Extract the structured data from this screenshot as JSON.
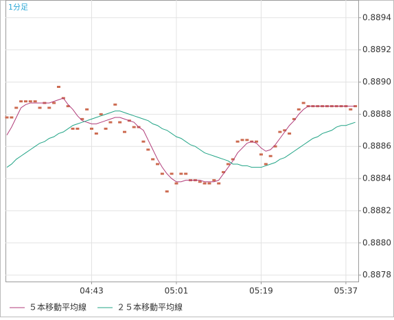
{
  "chart_data": {
    "type": "line",
    "title": "1分足",
    "categories": [
      null,
      null,
      null,
      null,
      null,
      null,
      null,
      null,
      null,
      null,
      null,
      null,
      null,
      null,
      null,
      null,
      null,
      null,
      "04:43",
      null,
      null,
      null,
      null,
      null,
      null,
      null,
      null,
      null,
      null,
      null,
      null,
      null,
      null,
      null,
      null,
      null,
      "05:01",
      null,
      null,
      null,
      null,
      null,
      null,
      null,
      null,
      null,
      null,
      null,
      null,
      null,
      null,
      null,
      null,
      null,
      "05:19",
      null,
      null,
      null,
      null,
      null,
      null,
      null,
      null,
      null,
      null,
      null,
      null,
      null,
      null,
      null,
      null,
      null,
      "05:37",
      null,
      null
    ],
    "series": [
      {
        "style": "dash",
        "color": "#cc6a50",
        "values": [
          0.88878,
          0.88878,
          0.88884,
          0.88888,
          0.88888,
          0.88888,
          0.88888,
          0.88884,
          0.88887,
          0.88884,
          0.88887,
          0.88897,
          0.8889,
          0.88885,
          0.88871,
          0.88871,
          0.88877,
          0.88883,
          0.88871,
          0.88868,
          0.8888,
          0.88871,
          0.88875,
          0.88886,
          0.88875,
          0.88869,
          0.88876,
          0.88872,
          0.88872,
          0.88863,
          0.88858,
          0.88852,
          0.88849,
          0.88843,
          0.88832,
          0.88843,
          0.88837,
          0.88843,
          0.88843,
          0.88839,
          0.88839,
          0.88838,
          0.88837,
          0.88837,
          0.88839,
          0.88837,
          0.88844,
          0.88849,
          0.88852,
          0.88863,
          0.88864,
          0.88864,
          0.88863,
          0.88863,
          0.88855,
          0.88849,
          0.88854,
          0.8886,
          0.88869,
          0.8887,
          0.88868,
          0.88877,
          0.88883,
          0.88887,
          0.88885,
          0.88885,
          0.88885,
          0.88885,
          0.88885,
          0.88885,
          0.88885,
          0.88885,
          0.88885,
          0.88883,
          0.88885
        ]
      },
      {
        "name": "５本移動平均線",
        "style": "line",
        "color": "#b03a78",
        "values": [
          0.88867,
          0.88872,
          0.88878,
          0.88884,
          0.88886,
          0.88887,
          0.88887,
          0.88887,
          0.88887,
          0.88887,
          0.88888,
          0.88889,
          0.8889,
          0.88886,
          0.88883,
          0.88879,
          0.88876,
          0.88875,
          0.88874,
          0.88874,
          0.88875,
          0.88876,
          0.88877,
          0.88878,
          0.88878,
          0.88877,
          0.88876,
          0.88875,
          0.88872,
          0.8887,
          0.88864,
          0.88858,
          0.88852,
          0.88847,
          0.88843,
          0.8884,
          0.88838,
          0.88838,
          0.88839,
          0.88839,
          0.88839,
          0.88839,
          0.88838,
          0.88838,
          0.88838,
          0.88839,
          0.88843,
          0.88847,
          0.88851,
          0.88856,
          0.88859,
          0.88862,
          0.88863,
          0.88862,
          0.88859,
          0.88857,
          0.88858,
          0.88861,
          0.88865,
          0.88869,
          0.88873,
          0.88876,
          0.8888,
          0.88883,
          0.88885,
          0.88885,
          0.88885,
          0.88885,
          0.88885,
          0.88885,
          0.88885,
          0.88885,
          0.88885,
          0.88885,
          0.88885
        ]
      },
      {
        "name": "２５本移動平均線",
        "style": "line",
        "color": "#1fa385",
        "values": [
          0.88847,
          0.88849,
          0.88852,
          0.88854,
          0.88856,
          0.88858,
          0.8886,
          0.88862,
          0.88863,
          0.88865,
          0.88866,
          0.88868,
          0.88869,
          0.88871,
          0.88873,
          0.88874,
          0.88875,
          0.88876,
          0.88877,
          0.88878,
          0.88879,
          0.8888,
          0.88881,
          0.88882,
          0.88882,
          0.88881,
          0.8888,
          0.88879,
          0.88878,
          0.88877,
          0.88876,
          0.88874,
          0.88873,
          0.88871,
          0.8887,
          0.88868,
          0.88866,
          0.88865,
          0.88863,
          0.88861,
          0.8886,
          0.88858,
          0.88856,
          0.88855,
          0.88854,
          0.88853,
          0.88852,
          0.88851,
          0.88849,
          0.88849,
          0.88848,
          0.88848,
          0.88847,
          0.88847,
          0.88847,
          0.88848,
          0.88849,
          0.8885,
          0.88852,
          0.88853,
          0.88855,
          0.88857,
          0.88859,
          0.88861,
          0.88863,
          0.88865,
          0.88866,
          0.88868,
          0.88869,
          0.8887,
          0.88872,
          0.88873,
          0.88873,
          0.88874,
          0.88875
        ]
      }
    ],
    "ylim": [
      0.88776,
      0.88951
    ],
    "yticks": [
      0.8878,
      {
        "value": 0.888,
        "label": "0.8880"
      },
      0.8882,
      0.8884,
      0.8886,
      0.8888,
      {
        "value": 0.889,
        "label": "0.8890"
      },
      0.8892,
      0.8894
    ],
    "grid": true
  }
}
